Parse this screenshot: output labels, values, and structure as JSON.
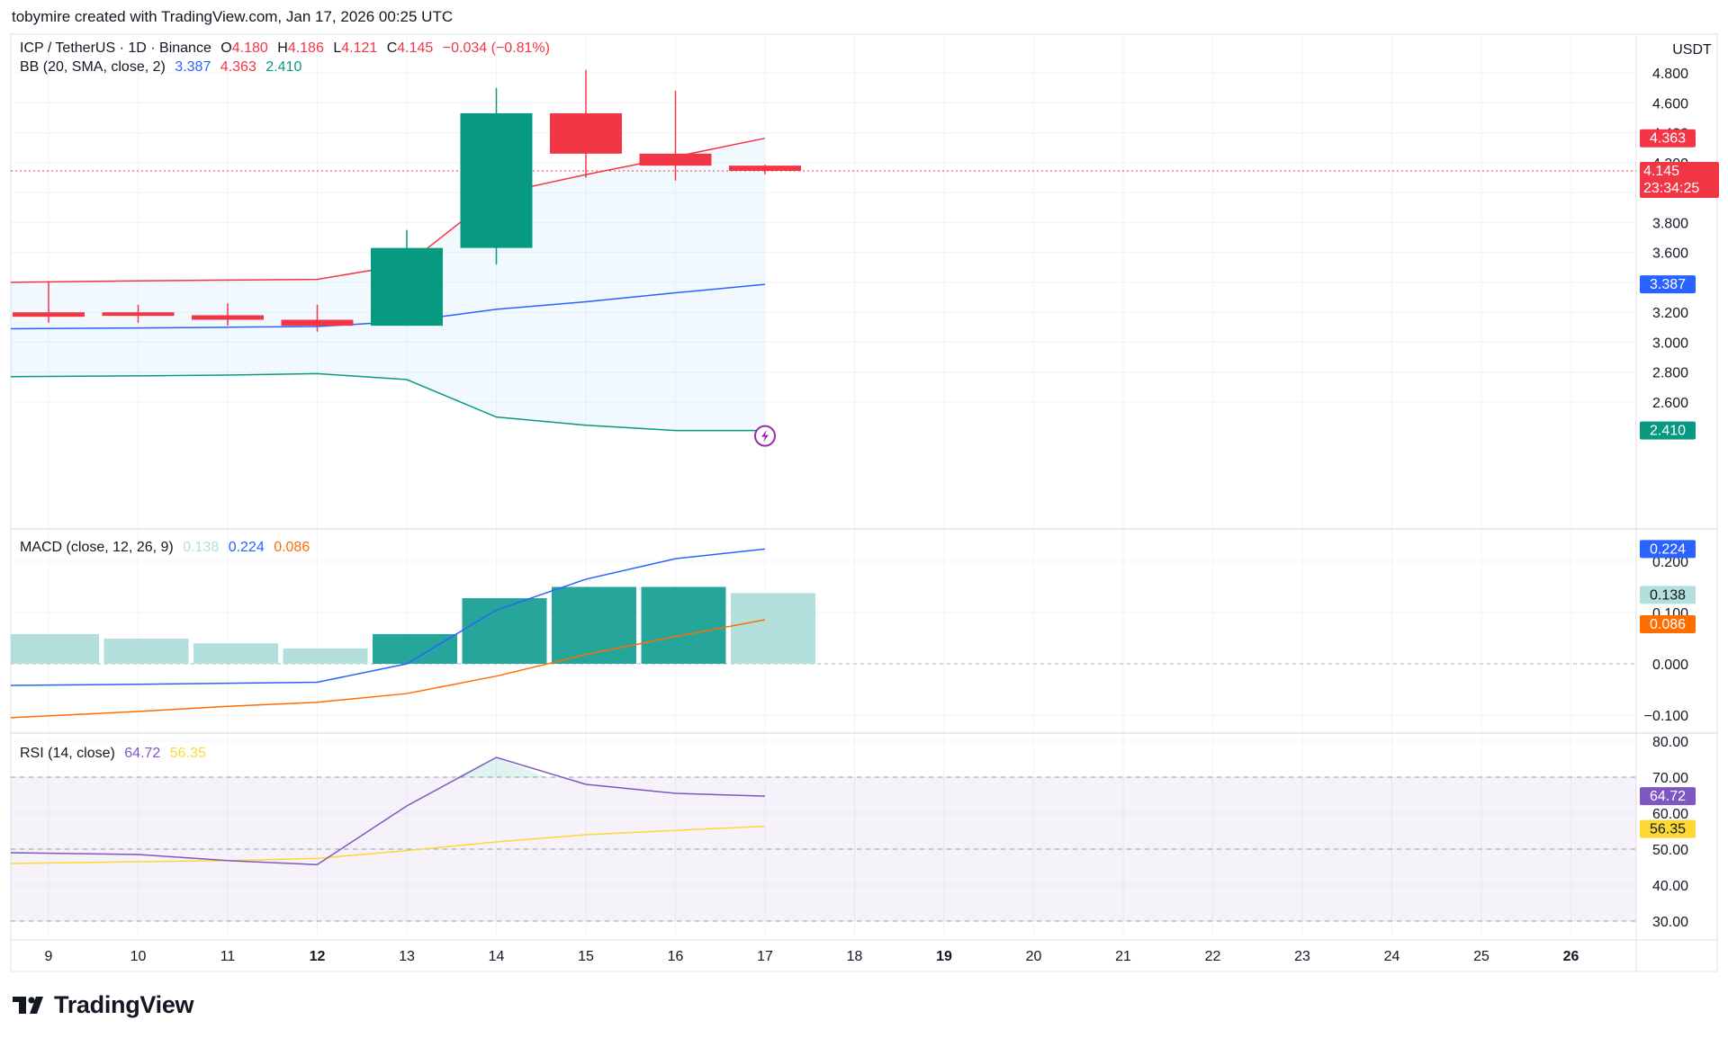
{
  "header": {
    "credit": "tobymire created with TradingView.com, Jan 17, 2026 00:25 UTC"
  },
  "legend": {
    "main": {
      "symbol": "ICP / TetherUS · 1D · Binance",
      "o_label": "O",
      "o_value": "4.180",
      "h_label": "H",
      "h_value": "4.186",
      "l_label": "L",
      "l_value": "4.121",
      "c_label": "C",
      "c_value": "4.145",
      "change": "−0.034 (−0.81%)"
    },
    "bb": {
      "label": "BB (20, SMA, close, 2)",
      "basis": "3.387",
      "upper": "4.363",
      "lower": "2.410"
    },
    "macd": {
      "label": "MACD (close, 12, 26, 9)",
      "hist": "0.138",
      "macd": "0.224",
      "signal": "0.086"
    },
    "rsi": {
      "label": "RSI (14, close)",
      "rsi": "64.72",
      "ma": "56.35"
    }
  },
  "price_axis": {
    "currency": "USDT",
    "ticks": [
      "4.800",
      "4.600",
      "4.400",
      "4.200",
      "4.000",
      "3.800",
      "3.600",
      "3.400",
      "3.200",
      "3.000",
      "2.800",
      "2.600"
    ],
    "badges": [
      {
        "text": "4.363",
        "color": "#f23645"
      },
      {
        "text": "4.145",
        "color": "#f23645"
      },
      {
        "text": "23:34:25",
        "color": "#f23645"
      },
      {
        "text": "3.387",
        "color": "#2962ff"
      },
      {
        "text": "2.410",
        "color": "#089981"
      }
    ]
  },
  "macd_axis": {
    "ticks": [
      "0.200",
      "0.100",
      "0.000",
      "−0.100"
    ],
    "badges": [
      {
        "text": "0.224",
        "color": "#2962ff"
      },
      {
        "text": "0.138",
        "color": "#b2dfdb"
      },
      {
        "text": "0.086",
        "color": "#ff6d00"
      }
    ]
  },
  "rsi_axis": {
    "ticks": [
      "80.00",
      "70.00",
      "60.00",
      "50.00",
      "40.00",
      "30.00"
    ],
    "badges": [
      {
        "text": "64.72",
        "color": "#7e57c2"
      },
      {
        "text": "56.35",
        "color": "#fdd835"
      }
    ]
  },
  "time_axis": {
    "labels": [
      "9",
      "10",
      "11",
      "12",
      "13",
      "14",
      "15",
      "16",
      "17",
      "18",
      "19",
      "20",
      "21",
      "22",
      "23",
      "24",
      "25",
      "26"
    ],
    "bold_labels": [
      "12",
      "19",
      "26"
    ]
  },
  "colors": {
    "up": "#089981",
    "down": "#f23645",
    "bb_basis": "#2962ff",
    "bb_upper": "#f23645",
    "bb_lower": "#089981",
    "macd": "#2962ff",
    "signal": "#ff6d00",
    "rsi": "#7e57c2",
    "rsi_ma": "#fdd835"
  },
  "logo": {
    "text": "TradingView"
  },
  "chart_data": {
    "type": "candlestick",
    "x": [
      "9",
      "10",
      "11",
      "12",
      "13",
      "14",
      "15",
      "16",
      "17"
    ],
    "ohlc": [
      {
        "o": 3.2,
        "h": 3.4,
        "l": 3.13,
        "c": 3.17
      },
      {
        "o": 3.2,
        "h": 3.25,
        "l": 3.13,
        "c": 3.18
      },
      {
        "o": 3.18,
        "h": 3.26,
        "l": 3.11,
        "c": 3.15
      },
      {
        "o": 3.15,
        "h": 3.25,
        "l": 3.07,
        "c": 3.11
      },
      {
        "o": 3.11,
        "h": 3.75,
        "l": 3.11,
        "c": 3.63
      },
      {
        "o": 3.63,
        "h": 4.7,
        "l": 3.52,
        "c": 4.53
      },
      {
        "o": 4.53,
        "h": 4.82,
        "l": 4.1,
        "c": 4.26
      },
      {
        "o": 4.26,
        "h": 4.68,
        "l": 4.08,
        "c": 4.18
      },
      {
        "o": 4.18,
        "h": 4.186,
        "l": 4.121,
        "c": 4.145
      }
    ],
    "bb": {
      "upper": [
        3.4,
        3.41,
        3.415,
        3.42,
        3.52,
        3.99,
        4.12,
        4.24,
        4.363
      ],
      "basis": [
        3.09,
        3.095,
        3.1,
        3.105,
        3.14,
        3.22,
        3.27,
        3.33,
        3.387
      ],
      "lower": [
        2.77,
        2.775,
        2.78,
        2.79,
        2.75,
        2.5,
        2.445,
        2.41,
        2.41
      ]
    },
    "macd": {
      "hist": [
        0.058,
        0.049,
        0.04,
        0.03,
        0.058,
        0.128,
        0.15,
        0.15,
        0.138
      ],
      "macd": [
        -0.042,
        -0.04,
        -0.038,
        -0.036,
        0.0,
        0.105,
        0.165,
        0.205,
        0.224
      ],
      "signal": [
        -0.105,
        -0.093,
        -0.083,
        -0.075,
        -0.058,
        -0.024,
        0.018,
        0.053,
        0.086
      ]
    },
    "rsi": {
      "rsi": [
        49.0,
        48.5,
        46.8,
        45.7,
        62.0,
        75.5,
        68.0,
        65.5,
        64.72
      ],
      "ma": [
        46.0,
        46.5,
        46.8,
        47.4,
        49.6,
        52.0,
        54.0,
        55.2,
        56.35
      ]
    },
    "price_ylim": [
      2.41,
      4.9
    ],
    "macd_ylim": [
      -0.12,
      0.25
    ],
    "rsi_ylim": [
      28,
      82
    ],
    "rsi_bands": [
      30,
      50,
      70
    ],
    "last_price": 4.145
  }
}
